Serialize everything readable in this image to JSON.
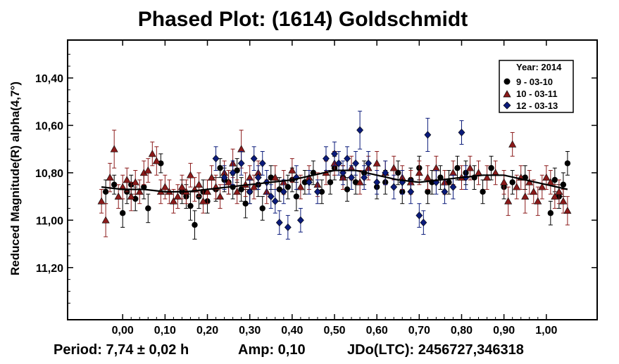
{
  "chart_data": {
    "type": "scatter",
    "title": "Phased Plot: (1614) Goldschmidt",
    "ylabel": "Reduced Magnitude(R) alpha(4,7°)",
    "xlabel": "",
    "xlim": [
      -0.13,
      1.12
    ],
    "ylim": [
      11.42,
      10.24
    ],
    "y_inverted": true,
    "x_ticks": [
      "0,00",
      "0,10",
      "0,20",
      "0,30",
      "0,40",
      "0,50",
      "0,60",
      "0,70",
      "0,80",
      "0,90",
      "1,00"
    ],
    "x_tick_values": [
      0,
      0.1,
      0.2,
      0.3,
      0.4,
      0.5,
      0.6,
      0.7,
      0.8,
      0.9,
      1.0
    ],
    "y_ticks": [
      "10,40",
      "10,60",
      "10,80",
      "11,00",
      "11,20"
    ],
    "y_tick_values": [
      10.4,
      10.6,
      10.8,
      11.0,
      11.2
    ],
    "legend": {
      "title": "Year: 2014",
      "placement": "top-right",
      "entries": [
        "9 - 03-10",
        "10 - 03-11",
        "12 - 03-13"
      ]
    },
    "fit_curve": {
      "color": "#000000",
      "x": [
        -0.05,
        0.0,
        0.05,
        0.1,
        0.15,
        0.2,
        0.25,
        0.3,
        0.35,
        0.4,
        0.45,
        0.5,
        0.55,
        0.6,
        0.65,
        0.7,
        0.75,
        0.8,
        0.85,
        0.9,
        0.95,
        1.0,
        1.05
      ],
      "y": [
        10.86,
        10.87,
        10.87,
        10.88,
        10.88,
        10.87,
        10.86,
        10.85,
        10.84,
        10.83,
        10.81,
        10.79,
        10.79,
        10.81,
        10.83,
        10.84,
        10.83,
        10.82,
        10.81,
        10.81,
        10.83,
        10.85,
        10.87
      ]
    },
    "series": [
      {
        "name": "9 - 03-10",
        "marker": "circle",
        "color": "#000000",
        "x": [
          -0.04,
          -0.02,
          0.0,
          0.01,
          0.02,
          0.03,
          0.05,
          0.06,
          0.09,
          0.14,
          0.15,
          0.16,
          0.17,
          0.18,
          0.19,
          0.2,
          0.22,
          0.23,
          0.24,
          0.25,
          0.26,
          0.27,
          0.28,
          0.29,
          0.3,
          0.32,
          0.33,
          0.35,
          0.37,
          0.39,
          0.4,
          0.41,
          0.43,
          0.45,
          0.47,
          0.49,
          0.5,
          0.52,
          0.53,
          0.55,
          0.57,
          0.6,
          0.62,
          0.65,
          0.66,
          0.68,
          0.7,
          0.72,
          0.73,
          0.75,
          0.77,
          0.79,
          0.81,
          0.83,
          0.85,
          0.87,
          0.9,
          0.92,
          0.95,
          1.01,
          1.02,
          1.03,
          1.04,
          1.05
        ],
        "y": [
          10.88,
          10.85,
          10.97,
          10.88,
          10.85,
          10.91,
          10.86,
          10.95,
          10.76,
          10.88,
          10.9,
          10.94,
          11.02,
          10.9,
          10.88,
          10.92,
          10.87,
          10.78,
          10.83,
          10.84,
          10.86,
          10.79,
          10.87,
          10.93,
          10.88,
          10.85,
          10.95,
          10.82,
          10.87,
          10.86,
          10.83,
          10.9,
          10.84,
          10.8,
          10.88,
          10.84,
          10.78,
          10.82,
          10.87,
          10.84,
          10.8,
          10.86,
          10.84,
          10.8,
          10.88,
          10.83,
          10.78,
          10.88,
          10.84,
          10.82,
          10.84,
          10.78,
          10.8,
          10.82,
          10.88,
          10.78,
          10.86,
          10.84,
          10.82,
          10.97,
          10.83,
          10.9,
          10.85,
          10.76
        ],
        "errors": [
          0.05,
          0.04,
          0.06,
          0.05,
          0.04,
          0.05,
          0.05,
          0.06,
          0.04,
          0.05,
          0.05,
          0.06,
          0.06,
          0.05,
          0.05,
          0.05,
          0.05,
          0.04,
          0.05,
          0.05,
          0.05,
          0.05,
          0.05,
          0.06,
          0.05,
          0.05,
          0.05,
          0.05,
          0.05,
          0.05,
          0.05,
          0.06,
          0.05,
          0.05,
          0.05,
          0.05,
          0.05,
          0.05,
          0.05,
          0.05,
          0.05,
          0.05,
          0.05,
          0.05,
          0.05,
          0.05,
          0.05,
          0.05,
          0.05,
          0.05,
          0.05,
          0.05,
          0.05,
          0.05,
          0.05,
          0.05,
          0.05,
          0.05,
          0.05,
          0.05,
          0.05,
          0.05,
          0.05,
          0.05
        ]
      },
      {
        "name": "10 - 03-11",
        "marker": "triangle",
        "color": "#8b1a1a",
        "x": [
          -0.05,
          -0.04,
          -0.03,
          -0.02,
          -0.01,
          0.0,
          0.01,
          0.02,
          0.03,
          0.04,
          0.05,
          0.06,
          0.07,
          0.08,
          0.09,
          0.1,
          0.11,
          0.12,
          0.13,
          0.14,
          0.15,
          0.16,
          0.17,
          0.18,
          0.19,
          0.2,
          0.21,
          0.22,
          0.23,
          0.24,
          0.25,
          0.26,
          0.27,
          0.28,
          0.29,
          0.3,
          0.31,
          0.32,
          0.34,
          0.36,
          0.38,
          0.4,
          0.42,
          0.44,
          0.46,
          0.48,
          0.5,
          0.52,
          0.54,
          0.56,
          0.58,
          0.6,
          0.62,
          0.64,
          0.66,
          0.68,
          0.7,
          0.72,
          0.74,
          0.76,
          0.78,
          0.8,
          0.82,
          0.84,
          0.86,
          0.88,
          0.9,
          0.91,
          0.92,
          0.93,
          0.94,
          0.95,
          0.96,
          0.97,
          0.98,
          0.99,
          1.0,
          1.01,
          1.02,
          1.03,
          1.04,
          1.05
        ],
        "y": [
          10.92,
          11.0,
          10.82,
          10.7,
          10.9,
          10.86,
          10.83,
          10.9,
          10.84,
          10.88,
          10.8,
          10.79,
          10.72,
          10.75,
          10.88,
          10.86,
          10.88,
          10.92,
          10.9,
          10.86,
          10.88,
          10.81,
          10.87,
          10.85,
          10.92,
          10.88,
          10.82,
          10.86,
          10.9,
          10.8,
          10.84,
          10.76,
          10.88,
          10.7,
          10.85,
          10.82,
          10.86,
          10.8,
          10.88,
          10.82,
          10.84,
          10.79,
          10.86,
          10.82,
          10.85,
          10.8,
          10.76,
          10.82,
          10.78,
          10.84,
          10.78,
          10.76,
          10.8,
          10.78,
          10.82,
          10.84,
          10.8,
          10.82,
          10.78,
          10.84,
          10.8,
          10.82,
          10.78,
          10.8,
          10.82,
          10.8,
          10.84,
          10.92,
          10.68,
          10.86,
          10.82,
          10.9,
          10.84,
          10.88,
          10.92,
          10.86,
          10.82,
          10.84,
          10.9,
          10.88,
          10.92,
          10.96
        ],
        "errors": [
          0.05,
          0.07,
          0.06,
          0.08,
          0.05,
          0.05,
          0.05,
          0.06,
          0.05,
          0.05,
          0.05,
          0.05,
          0.05,
          0.06,
          0.05,
          0.05,
          0.05,
          0.05,
          0.05,
          0.05,
          0.05,
          0.05,
          0.05,
          0.05,
          0.05,
          0.05,
          0.05,
          0.05,
          0.05,
          0.05,
          0.05,
          0.06,
          0.05,
          0.08,
          0.05,
          0.05,
          0.05,
          0.05,
          0.05,
          0.05,
          0.05,
          0.05,
          0.05,
          0.05,
          0.05,
          0.05,
          0.05,
          0.05,
          0.05,
          0.05,
          0.05,
          0.05,
          0.05,
          0.05,
          0.05,
          0.05,
          0.05,
          0.05,
          0.05,
          0.05,
          0.05,
          0.05,
          0.05,
          0.05,
          0.05,
          0.05,
          0.05,
          0.06,
          0.05,
          0.05,
          0.05,
          0.07,
          0.05,
          0.05,
          0.06,
          0.05,
          0.05,
          0.05,
          0.05,
          0.05,
          0.05,
          0.06
        ]
      },
      {
        "name": "12 - 03-13",
        "marker": "diamond",
        "color": "#0a1a7a",
        "x": [
          0.22,
          0.24,
          0.26,
          0.28,
          0.3,
          0.31,
          0.32,
          0.33,
          0.34,
          0.35,
          0.36,
          0.37,
          0.38,
          0.39,
          0.41,
          0.42,
          0.44,
          0.46,
          0.48,
          0.5,
          0.51,
          0.52,
          0.53,
          0.54,
          0.55,
          0.56,
          0.57,
          0.58,
          0.6,
          0.62,
          0.64,
          0.66,
          0.68,
          0.7,
          0.71,
          0.72,
          0.74,
          0.76,
          0.78,
          0.8,
          0.81
        ],
        "y": [
          10.74,
          10.82,
          10.8,
          10.76,
          10.88,
          10.74,
          10.82,
          10.76,
          10.84,
          10.9,
          10.92,
          11.01,
          10.88,
          11.03,
          10.82,
          11.0,
          10.84,
          10.88,
          10.74,
          10.72,
          10.76,
          10.8,
          10.74,
          10.82,
          10.76,
          10.62,
          10.82,
          10.76,
          10.84,
          10.8,
          10.86,
          10.84,
          10.88,
          10.98,
          11.01,
          10.64,
          10.84,
          10.88,
          10.86,
          10.63,
          10.82
        ],
        "errors": [
          0.05,
          0.05,
          0.05,
          0.05,
          0.05,
          0.05,
          0.05,
          0.05,
          0.05,
          0.05,
          0.05,
          0.05,
          0.05,
          0.05,
          0.05,
          0.05,
          0.05,
          0.05,
          0.05,
          0.05,
          0.05,
          0.05,
          0.05,
          0.05,
          0.05,
          0.08,
          0.05,
          0.05,
          0.05,
          0.05,
          0.05,
          0.05,
          0.05,
          0.05,
          0.05,
          0.07,
          0.05,
          0.05,
          0.05,
          0.05,
          0.05
        ]
      }
    ]
  },
  "footer": {
    "period": "Period: 7,74 ± 0,02 h",
    "amp": "Amp: 0,10",
    "jdo": "JDo(LTC): 2456727,346318"
  }
}
